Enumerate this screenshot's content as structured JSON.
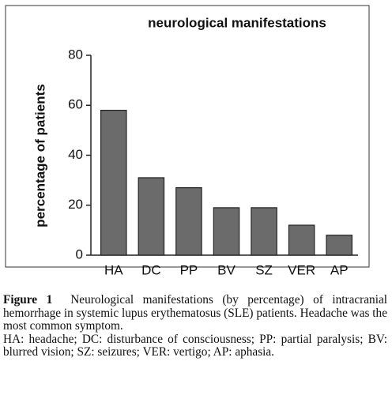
{
  "chart_data": {
    "type": "bar",
    "title": "neurological manifestations",
    "y_label": "percentage of patients",
    "categories": [
      "HA",
      "DC",
      "PP",
      "BV",
      "SZ",
      "VER",
      "AP"
    ],
    "values": [
      58,
      31,
      27,
      19,
      19,
      12,
      8
    ],
    "color": "#6b6b6b",
    "ylim": [
      0,
      80
    ],
    "yticks": [
      0,
      20,
      40,
      60,
      80
    ],
    "grid": false
  },
  "caption": {
    "figure_label": "Figure 1",
    "text": "Neurological manifestations (by percentage) of intracranial hemorrhage in systemic lupus erythematosus (SLE) patients. Headache was the most common symptom.",
    "legend": "HA: headache; DC: disturbance of consciousness; PP: partial paralysis; BV: blurred vision; SZ: seizures; VER: vertigo; AP: aphasia."
  }
}
